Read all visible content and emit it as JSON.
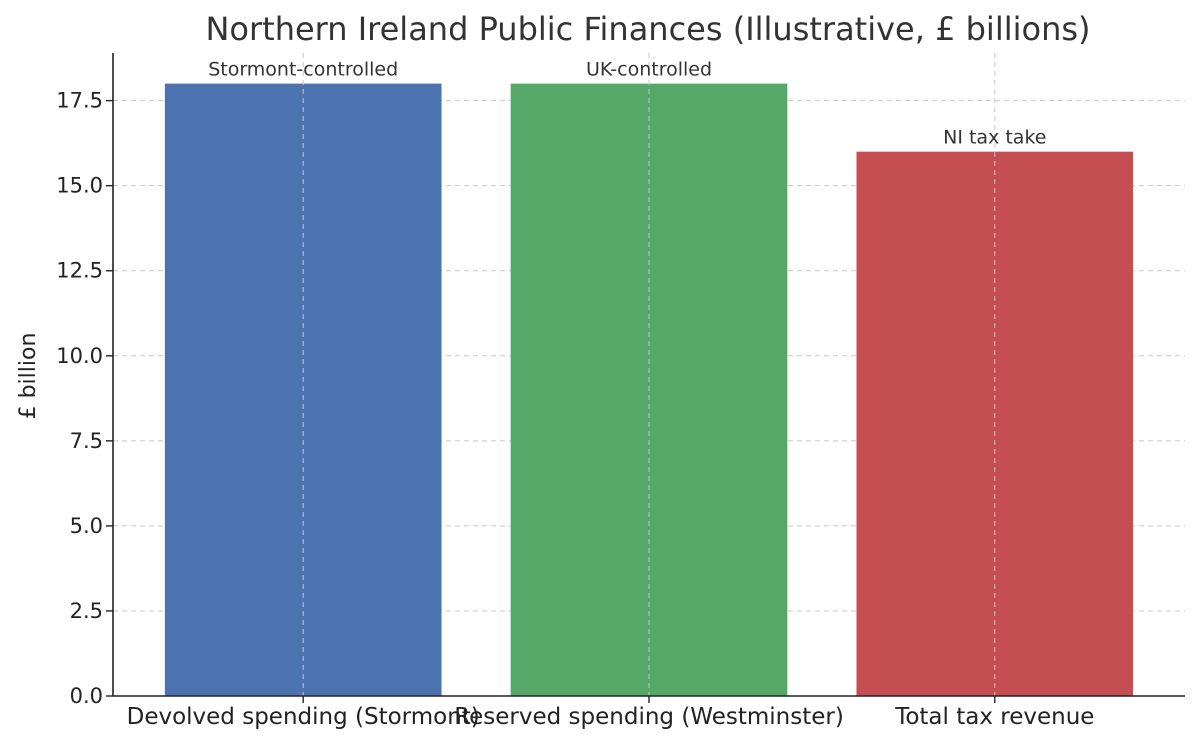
{
  "chart_data": {
    "type": "bar",
    "title": "Northern Ireland Public Finances (Illustrative, £ billions)",
    "xlabel": "",
    "ylabel": "£ billion",
    "categories": [
      "Devolved spending (Stormont)",
      "Reserved spending (Westminster)",
      "Total tax revenue"
    ],
    "values": [
      18,
      18,
      16
    ],
    "annotations": [
      "Stormont-controlled",
      "UK-controlled",
      "NI tax take"
    ],
    "colors": [
      "#4c72b0",
      "#55a868",
      "#c44e52"
    ],
    "ylim": [
      0,
      18.9
    ],
    "yticks": [
      0,
      2.5,
      5,
      7.5,
      10,
      12.5,
      15,
      17.5
    ],
    "ytick_labels": [
      "0.0",
      "2.5",
      "5.0",
      "7.5",
      "10.0",
      "12.5",
      "15.0",
      "17.5"
    ],
    "grid": true
  }
}
